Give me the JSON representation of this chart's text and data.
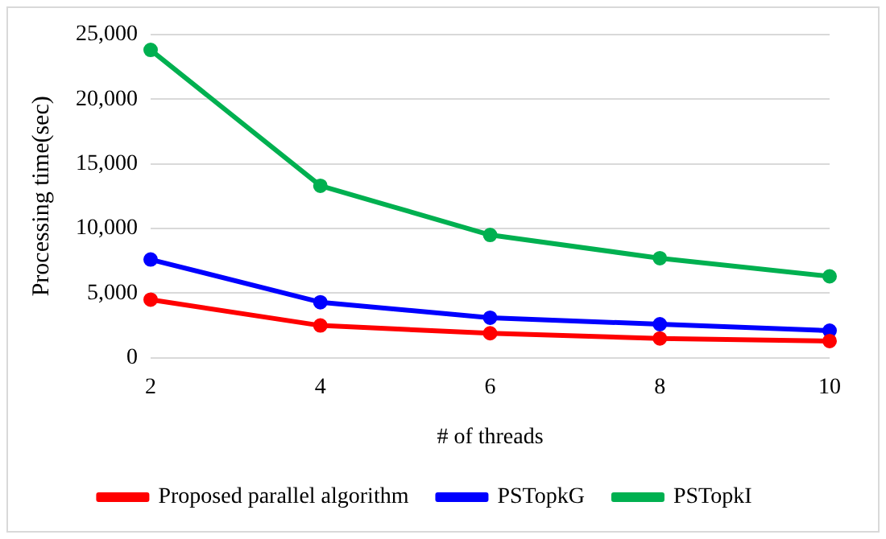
{
  "chart_data": {
    "type": "line",
    "xlabel": "# of threads",
    "ylabel": "Processing time(sec)",
    "categories": [
      "2",
      "4",
      "6",
      "8",
      "10"
    ],
    "series": [
      {
        "name": "Proposed parallel algorithm",
        "color": "#ff0000",
        "values": [
          4500,
          2500,
          1900,
          1500,
          1300
        ]
      },
      {
        "name": "PSTopkG",
        "color": "#0000ff",
        "values": [
          7600,
          4300,
          3100,
          2600,
          2100
        ]
      },
      {
        "name": "PSTopkI",
        "color": "#00b050",
        "values": [
          23800,
          13300,
          9500,
          7700,
          6300
        ]
      }
    ],
    "ylim": [
      0,
      25000
    ],
    "yticks": [
      {
        "value": 0,
        "label": "0"
      },
      {
        "value": 5000,
        "label": "5,000"
      },
      {
        "value": 10000,
        "label": "10,000"
      },
      {
        "value": 15000,
        "label": "15,000"
      },
      {
        "value": 20000,
        "label": "20,000"
      },
      {
        "value": 25000,
        "label": "25,000"
      }
    ],
    "grid": "y",
    "legend": "bottom",
    "marker": "circle",
    "line_style": "solid"
  }
}
